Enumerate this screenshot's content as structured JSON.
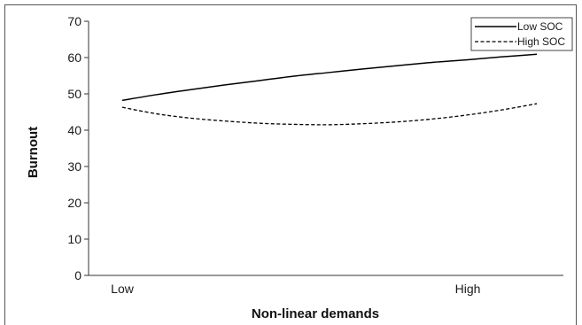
{
  "chart_data": {
    "type": "line",
    "title": "",
    "xlabel": "Non-linear demands",
    "ylabel": "Burnout",
    "x_ticks": [
      "Low",
      "High"
    ],
    "ylim": [
      0,
      70
    ],
    "yticks": [
      0,
      10,
      20,
      30,
      40,
      50,
      60,
      70
    ],
    "grid": false,
    "legend_position": "top-right",
    "x": [
      0,
      0.1,
      0.2,
      0.3,
      0.4,
      0.5,
      0.6,
      0.7,
      0.8,
      0.9,
      1.0,
      1.1,
      1.2
    ],
    "series": [
      {
        "name": "Low SOC",
        "style": "solid",
        "color": "#000000",
        "values": [
          48.2,
          49.8,
          51.2,
          52.5,
          53.7,
          54.9,
          55.9,
          56.9,
          57.8,
          58.7,
          59.4,
          60.2,
          60.9
        ]
      },
      {
        "name": "High SOC",
        "style": "dashed",
        "color": "#000000",
        "values": [
          46.3,
          44.5,
          43.3,
          42.5,
          41.9,
          41.6,
          41.5,
          41.8,
          42.3,
          43.1,
          44.2,
          45.6,
          47.3
        ]
      }
    ]
  }
}
